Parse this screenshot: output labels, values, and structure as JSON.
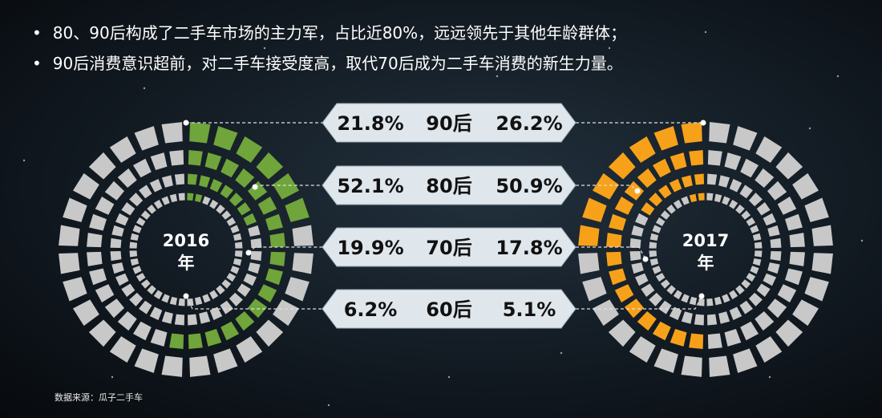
{
  "bullets": [
    "80、90后构成了二手车市场的主力军，占比近80%，远远领先于其他年龄群体；",
    "90后消费意识超前，对二手车接受度高，取代70后成为二手车消费的新生力量。"
  ],
  "source": "数据来源：瓜子二手车",
  "colors": {
    "y2016": "#6fa53a",
    "y2017": "#f7a11a",
    "base": "#c8c8c8",
    "label_bg": "#dfe6ec",
    "label_text": "#111111"
  },
  "chart_data": {
    "type": "radial-bar",
    "categories": [
      "90后",
      "80后",
      "70后",
      "60后"
    ],
    "series": [
      {
        "name": "2016年",
        "values": [
          21.8,
          52.1,
          19.9,
          6.2
        ],
        "labels": [
          "21.8%",
          "52.1%",
          "19.9%",
          "6.2%"
        ]
      },
      {
        "name": "2017年",
        "values": [
          26.2,
          50.9,
          17.8,
          5.1
        ],
        "labels": [
          "26.2%",
          "50.9%",
          "17.8%",
          "5.1%"
        ]
      }
    ],
    "centers": [
      "2016\n年",
      "2017\n年"
    ]
  }
}
